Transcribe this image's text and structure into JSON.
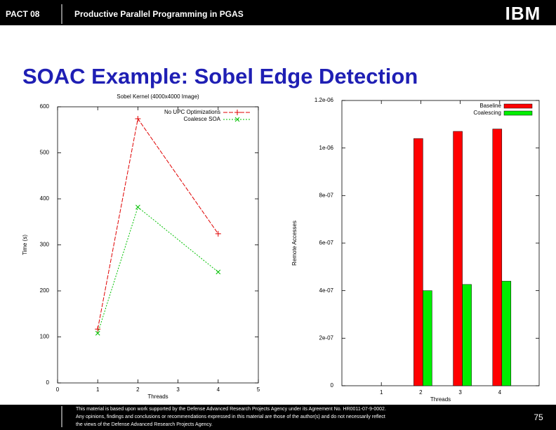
{
  "header": {
    "left": "PACT 08",
    "title": "Productive Parallel Programming in PGAS",
    "logo": "IBM"
  },
  "slide_title": "SOAC Example: Sobel Edge Detection",
  "chart_data": [
    {
      "type": "line",
      "title": "Sobel Kernel (4000x4000 Image)",
      "x_label": "Threads",
      "y_label": "Time (s)",
      "x": [
        1,
        2,
        4
      ],
      "xlim": [
        0,
        5
      ],
      "xticks": [
        0,
        1,
        2,
        3,
        4,
        5
      ],
      "ylim": [
        0,
        600
      ],
      "yticks": [
        0,
        100,
        200,
        300,
        400,
        500,
        600
      ],
      "legend": "top-right",
      "series": [
        {
          "name": "No UPC Optimizations",
          "color": "#e00000",
          "marker": "plus",
          "values": [
            117,
            574,
            324
          ]
        },
        {
          "name": "Coalesce SOA",
          "color": "#00c000",
          "marker": "cross",
          "values": [
            108,
            382,
            241
          ]
        }
      ]
    },
    {
      "type": "bar",
      "x_label": "Threads",
      "y_label": "Remote Accesses",
      "categories": [
        "1",
        "2",
        "3",
        "4"
      ],
      "ylim": [
        0,
        1.2e-06
      ],
      "yticks": [
        0,
        {
          "value": 2e-07,
          "label": "2e-07"
        },
        {
          "value": 4e-07,
          "label": "4e-07"
        },
        {
          "value": 6e-07,
          "label": "6e-07"
        },
        {
          "value": 8e-07,
          "label": "8e-07"
        },
        {
          "value": 1e-06,
          "label": "1e-06"
        },
        {
          "value": 1.2e-06,
          "label": "1.2e-06"
        }
      ],
      "legend": "top-right",
      "series": [
        {
          "name": "Baseline",
          "color": "#ff0000",
          "values": [
            0,
            1.04e-06,
            1.07e-06,
            1.08e-06
          ]
        },
        {
          "name": "Coalescing",
          "color": "#00ee00",
          "values": [
            0,
            4e-07,
            4.26e-07,
            4.4e-07
          ]
        }
      ]
    }
  ],
  "footer": {
    "lines": [
      "This material is based upon work supported by the Defense Advanced Research Projects Agency under its Agreement No. HR0011-07-9-0002.",
      "Any opinions, findings and conclusions or recommendations expressed in this material are those of the author(s) and do not necessarily reflect",
      "the views of the Defense Advanced Research Projects Agency."
    ],
    "page": "75"
  }
}
